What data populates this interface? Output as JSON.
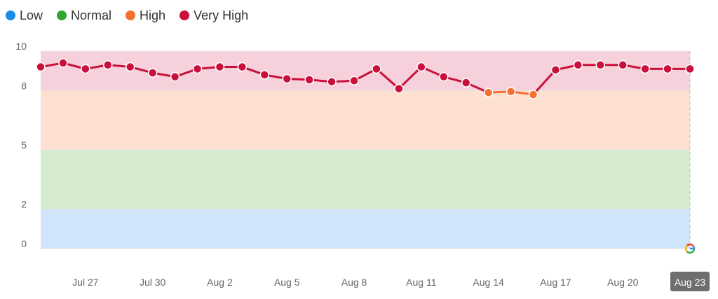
{
  "legend": [
    {
      "label": "Low",
      "color": "#1a8ce6"
    },
    {
      "label": "Normal",
      "color": "#2fa52f"
    },
    {
      "label": "High",
      "color": "#f47030"
    },
    {
      "label": "Very High",
      "color": "#c8103a"
    }
  ],
  "chart_data": {
    "type": "line",
    "ylim": [
      0,
      10
    ],
    "yticks": [
      0,
      2,
      5,
      8,
      10
    ],
    "bands": [
      {
        "name": "Low",
        "from": 0,
        "to": 2,
        "color": "#cfe5fc"
      },
      {
        "name": "Normal",
        "from": 2,
        "to": 5,
        "color": "#d6ecd0"
      },
      {
        "name": "High",
        "from": 5,
        "to": 8,
        "color": "#fde0d0"
      },
      {
        "name": "Very High",
        "from": 8,
        "to": 10,
        "color": "#f6d0da"
      }
    ],
    "x": [
      "Jul 25",
      "Jul 26",
      "Jul 27",
      "Jul 28",
      "Jul 29",
      "Jul 30",
      "Jul 31",
      "Aug 1",
      "Aug 2",
      "Aug 3",
      "Aug 4",
      "Aug 5",
      "Aug 6",
      "Aug 7",
      "Aug 8",
      "Aug 9",
      "Aug 10",
      "Aug 11",
      "Aug 12",
      "Aug 13",
      "Aug 14",
      "Aug 15",
      "Aug 16",
      "Aug 17",
      "Aug 18",
      "Aug 19",
      "Aug 20",
      "Aug 21",
      "Aug 22",
      "Aug 23"
    ],
    "values": [
      9.2,
      9.4,
      9.1,
      9.3,
      9.2,
      8.9,
      8.7,
      9.1,
      9.2,
      9.2,
      8.8,
      8.6,
      8.55,
      8.45,
      8.5,
      9.1,
      8.1,
      9.2,
      8.7,
      8.4,
      7.9,
      7.95,
      7.8,
      9.05,
      9.3,
      9.3,
      9.3,
      9.1,
      9.1,
      9.1
    ],
    "xtick_labels": [
      "Jul 27",
      "Jul 30",
      "Aug 2",
      "Aug 5",
      "Aug 8",
      "Aug 11",
      "Aug 14",
      "Aug 17",
      "Aug 20",
      "Aug 23"
    ],
    "highlighted_x": "Aug 23",
    "series_color_very_high": "#c8103a",
    "series_color_high": "#f47030"
  }
}
